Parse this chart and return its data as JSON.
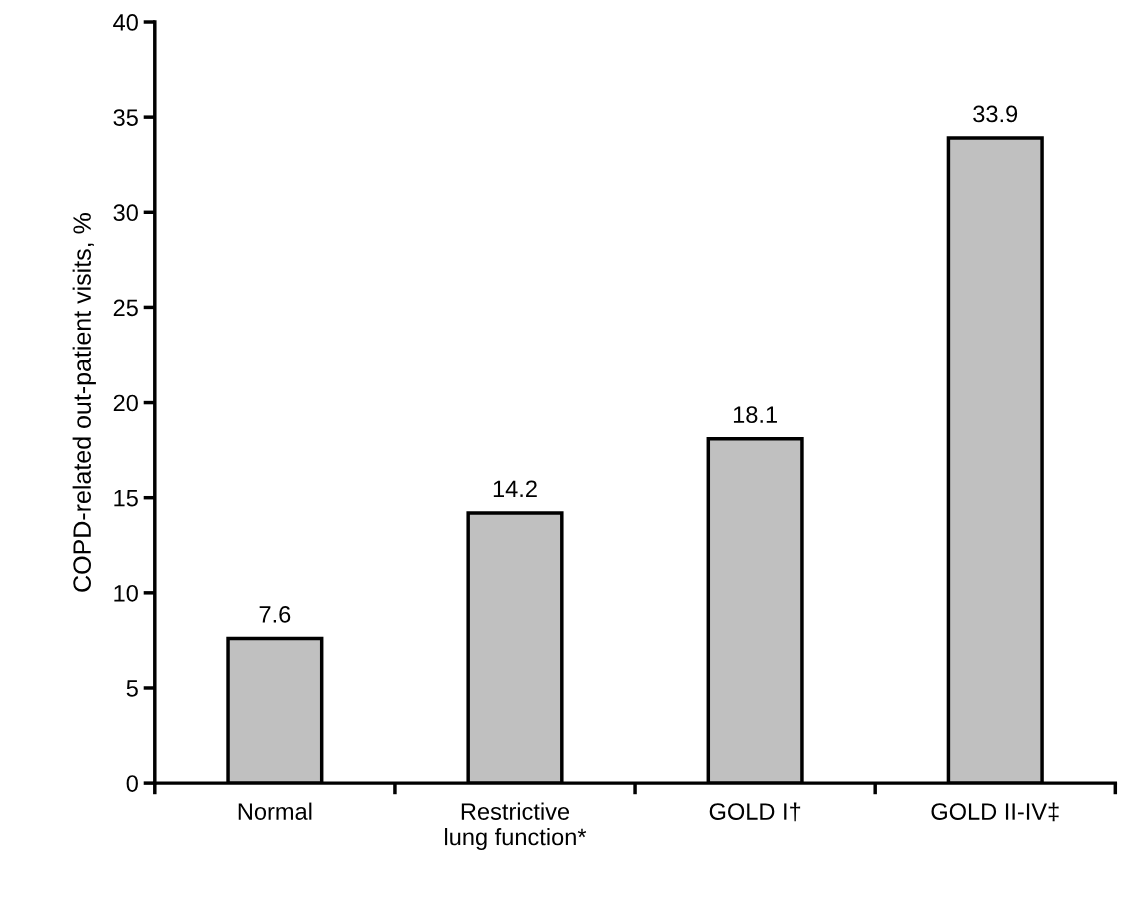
{
  "chart_data": {
    "type": "bar",
    "ylabel": "COPD-related out-patient visits, %",
    "categories": [
      "Normal",
      "Restrictive\nlung function*",
      "GOLD I†",
      "GOLD II-IV‡"
    ],
    "values": [
      7.6,
      14.2,
      18.1,
      33.9
    ],
    "color": "#c0c0c0",
    "ylim": [
      0,
      40
    ],
    "yticks": [
      0,
      5,
      10,
      15,
      20,
      25,
      30,
      35,
      40
    ],
    "grid": false,
    "data_labels": true
  }
}
